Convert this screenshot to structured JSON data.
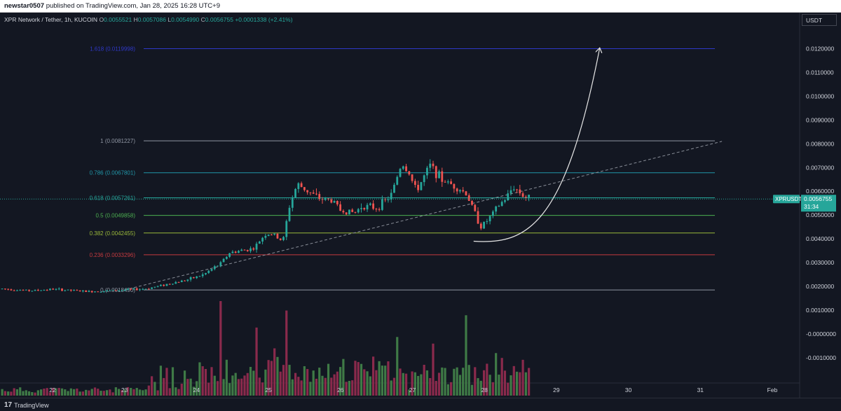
{
  "header": {
    "author": "newstar0507",
    "published_text": "published on TradingView.com, Jan 28, 2025 16:28 UTC+9"
  },
  "symbol": {
    "name": "XPR Network / Tether, 1h, KUCOIN",
    "open": "0.0055521",
    "high": "0.0057086",
    "low": "0.0054990",
    "close": "0.0056755",
    "change": "+0.0001338 (+2.41%)"
  },
  "currency_button": "USDT",
  "footer": {
    "brand": "TradingView",
    "logo": "tv-logo-icon"
  },
  "colors": {
    "background": "#131722",
    "up": "#26a69a",
    "down": "#ef5350",
    "vol_up": "#3f7a46",
    "vol_down": "#8a2a4c",
    "price_tag": "#26a69a"
  },
  "chart_data": {
    "type": "candlestick",
    "title": "",
    "x_ticks": [
      "22",
      "23",
      "24",
      "25",
      "26",
      "27",
      "28",
      "29",
      "30",
      "31",
      "Feb"
    ],
    "y_ticks": [
      "0.0120000",
      "0.0110000",
      "0.0100000",
      "0.0090000",
      "0.0080000",
      "0.0070000",
      "0.0060000",
      "0.0050000",
      "0.0040000",
      "0.0030000",
      "0.0020000",
      "0.0010000",
      "-0.0000000",
      "-0.0010000"
    ],
    "ylim": [
      -0.0017,
      0.0135
    ],
    "current_price": {
      "symbol": "XPRUSDT",
      "value": "0.0056755",
      "countdown": "31:34"
    },
    "fib_levels": [
      {
        "label": "1.618 (0.0119998)",
        "value": 0.0119998,
        "color": "#2f38c8"
      },
      {
        "label": "1 (0.0081227)",
        "value": 0.0081227,
        "color": "#8f96a3"
      },
      {
        "label": "0.786 (0.0067801)",
        "value": 0.0067801,
        "color": "#2196a8"
      },
      {
        "label": "0.618 (0.0057261)",
        "value": 0.0057261,
        "color": "#26a69a"
      },
      {
        "label": "0.5 (0.0049858)",
        "value": 0.0049858,
        "color": "#4caf50"
      },
      {
        "label": "0.382 (0.0042455)",
        "value": 0.0042455,
        "color": "#9ab83a"
      },
      {
        "label": "0.236 (0.0033296)",
        "value": 0.0033296,
        "color": "#c43a3f"
      },
      {
        "label": "0 (0.0018490)",
        "value": 0.001849,
        "color": "#8f96a3"
      }
    ],
    "trend_line": {
      "from": [
        "23",
        0.00185
      ],
      "to": [
        "31.3",
        0.0081
      ]
    },
    "projection_curve": {
      "from": [
        "27.85",
        0.0039
      ],
      "to": [
        "29.6",
        0.012
      ]
    },
    "price_anchors": [
      [
        "21.3",
        0.0019
      ],
      [
        "21.7",
        0.00182
      ],
      [
        "22.0",
        0.00188
      ],
      [
        "22.5",
        0.00178
      ],
      [
        "23.0",
        0.00185
      ],
      [
        "23.3",
        0.0019
      ],
      [
        "23.6",
        0.0021
      ],
      [
        "23.9",
        0.0023
      ],
      [
        "24.1",
        0.0025
      ],
      [
        "24.35",
        0.003
      ],
      [
        "24.45",
        0.0034
      ],
      [
        "24.6",
        0.0035
      ],
      [
        "24.8",
        0.0036
      ],
      [
        "24.95",
        0.0042
      ],
      [
        "25.05",
        0.0042
      ],
      [
        "25.2",
        0.0039
      ],
      [
        "25.3",
        0.0055
      ],
      [
        "25.4",
        0.0063
      ],
      [
        "25.55",
        0.006
      ],
      [
        "25.7",
        0.0057
      ],
      [
        "25.9",
        0.0056
      ],
      [
        "26.0",
        0.0052
      ],
      [
        "26.2",
        0.0051
      ],
      [
        "26.3",
        0.0054
      ],
      [
        "26.5",
        0.0053
      ],
      [
        "26.7",
        0.0058
      ],
      [
        "26.85",
        0.0072
      ],
      [
        "26.95",
        0.0068
      ],
      [
        "27.05",
        0.006
      ],
      [
        "27.25",
        0.0071
      ],
      [
        "27.4",
        0.0065
      ],
      [
        "27.6",
        0.0062
      ],
      [
        "27.75",
        0.0059
      ],
      [
        "27.85",
        0.0052
      ],
      [
        "27.95",
        0.0045
      ],
      [
        "28.05",
        0.0048
      ],
      [
        "28.2",
        0.0054
      ],
      [
        "28.3",
        0.0057
      ],
      [
        "28.4",
        0.0062
      ],
      [
        "28.55",
        0.0058
      ],
      [
        "28.65",
        0.0056755
      ]
    ],
    "volume_peaks": [
      [
        "24.35",
        1.0
      ],
      [
        "25.25",
        0.9
      ],
      [
        "24.85",
        0.72
      ],
      [
        "26.8",
        0.62
      ],
      [
        "27.75",
        0.85
      ],
      [
        "28.15",
        0.45
      ],
      [
        "27.3",
        0.55
      ],
      [
        "25.1",
        0.5
      ]
    ]
  }
}
